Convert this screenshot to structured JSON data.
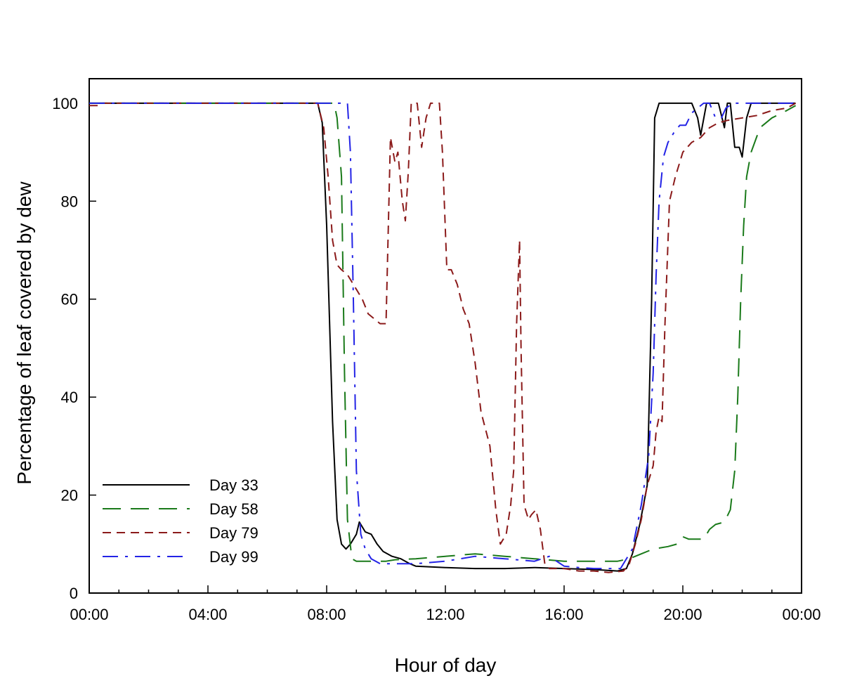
{
  "chart_data": {
    "type": "line",
    "title": "",
    "xlabel": "Hour of day",
    "ylabel": "Percentage of leaf covered by dew",
    "xlim": [
      0,
      24
    ],
    "ylim": [
      0,
      105
    ],
    "x_ticks": [
      0,
      4,
      8,
      12,
      16,
      20,
      24
    ],
    "x_tick_labels": [
      "00:00",
      "04:00",
      "08:00",
      "12:00",
      "16:00",
      "20:00",
      "00:00"
    ],
    "x_minor_step": 1,
    "y_ticks": [
      0,
      20,
      40,
      60,
      80,
      100
    ],
    "y_tick_labels": [
      "0",
      "20",
      "40",
      "60",
      "80",
      "100"
    ],
    "grid": false,
    "legend_position": "bottom-left",
    "series": [
      {
        "name": "Day 33",
        "color": "#000000",
        "dash": "solid",
        "points": [
          [
            0,
            100
          ],
          [
            7.7,
            100
          ],
          [
            7.85,
            96
          ],
          [
            8.0,
            75
          ],
          [
            8.2,
            35
          ],
          [
            8.35,
            15
          ],
          [
            8.5,
            10
          ],
          [
            8.65,
            9
          ],
          [
            8.8,
            10
          ],
          [
            9.0,
            12
          ],
          [
            9.1,
            14.5
          ],
          [
            9.3,
            12.5
          ],
          [
            9.5,
            12
          ],
          [
            9.7,
            10
          ],
          [
            9.9,
            8.5
          ],
          [
            10.2,
            7.5
          ],
          [
            10.5,
            7
          ],
          [
            10.8,
            6
          ],
          [
            11,
            5.5
          ],
          [
            12,
            5.2
          ],
          [
            13,
            5
          ],
          [
            14,
            5
          ],
          [
            15,
            5.2
          ],
          [
            16,
            5
          ],
          [
            17,
            4.8
          ],
          [
            17.8,
            4.5
          ],
          [
            18.1,
            5
          ],
          [
            18.3,
            8
          ],
          [
            18.55,
            14
          ],
          [
            18.8,
            22
          ],
          [
            18.95,
            60
          ],
          [
            19.05,
            97
          ],
          [
            19.2,
            100
          ],
          [
            20.3,
            100
          ],
          [
            20.5,
            97
          ],
          [
            20.6,
            93.5
          ],
          [
            20.8,
            100
          ],
          [
            21.2,
            100
          ],
          [
            21.4,
            95
          ],
          [
            21.5,
            100
          ],
          [
            21.6,
            100
          ],
          [
            21.75,
            91
          ],
          [
            21.9,
            91
          ],
          [
            22.0,
            89
          ],
          [
            22.15,
            97
          ],
          [
            22.3,
            100
          ],
          [
            23.8,
            100
          ]
        ]
      },
      {
        "name": "Day 58",
        "color": "#1a7a1a",
        "dash": "long",
        "points": [
          [
            0,
            100
          ],
          [
            8.25,
            100
          ],
          [
            8.35,
            97
          ],
          [
            8.5,
            85
          ],
          [
            8.6,
            45
          ],
          [
            8.7,
            15
          ],
          [
            8.85,
            7
          ],
          [
            9.0,
            6.5
          ],
          [
            9.5,
            6.5
          ],
          [
            10,
            6.5
          ],
          [
            10.3,
            6.8
          ],
          [
            11,
            7
          ],
          [
            12,
            7.5
          ],
          [
            13,
            8
          ],
          [
            14,
            7.5
          ],
          [
            15,
            7
          ],
          [
            16,
            6.5
          ],
          [
            17,
            6.5
          ],
          [
            17.8,
            6.5
          ],
          [
            18.2,
            7
          ],
          [
            18.6,
            8
          ],
          [
            19,
            9
          ],
          [
            19.5,
            9.5
          ],
          [
            19.8,
            10
          ],
          [
            20.0,
            11.5
          ],
          [
            20.2,
            11
          ],
          [
            20.5,
            11
          ],
          [
            20.7,
            11
          ],
          [
            20.9,
            13
          ],
          [
            21.1,
            14
          ],
          [
            21.4,
            14.5
          ],
          [
            21.6,
            17
          ],
          [
            21.75,
            25
          ],
          [
            21.85,
            40
          ],
          [
            21.95,
            60
          ],
          [
            22.05,
            75
          ],
          [
            22.15,
            85
          ],
          [
            22.3,
            90
          ],
          [
            22.6,
            95
          ],
          [
            23,
            97
          ],
          [
            23.5,
            98.5
          ],
          [
            23.8,
            99.5
          ]
        ]
      },
      {
        "name": "Day 79",
        "color": "#8b1a1a",
        "dash": "short",
        "points": [
          [
            0,
            99.5
          ],
          [
            0.3,
            99.5
          ],
          [
            0.45,
            100
          ],
          [
            7.7,
            100
          ],
          [
            7.9,
            95
          ],
          [
            8.05,
            85
          ],
          [
            8.2,
            72
          ],
          [
            8.35,
            67
          ],
          [
            8.5,
            66
          ],
          [
            8.7,
            65
          ],
          [
            9.0,
            62
          ],
          [
            9.2,
            60
          ],
          [
            9.4,
            57
          ],
          [
            9.6,
            56
          ],
          [
            9.8,
            55
          ],
          [
            10.0,
            55
          ],
          [
            10.15,
            93
          ],
          [
            10.3,
            88
          ],
          [
            10.4,
            90
          ],
          [
            10.55,
            80
          ],
          [
            10.65,
            76
          ],
          [
            10.75,
            86
          ],
          [
            10.85,
            100
          ],
          [
            11.05,
            100
          ],
          [
            11.2,
            91
          ],
          [
            11.35,
            97
          ],
          [
            11.5,
            100
          ],
          [
            11.8,
            100
          ],
          [
            11.9,
            90
          ],
          [
            12.05,
            66
          ],
          [
            12.2,
            66
          ],
          [
            12.4,
            63
          ],
          [
            12.6,
            58
          ],
          [
            12.8,
            55
          ],
          [
            13.0,
            47
          ],
          [
            13.2,
            37
          ],
          [
            13.5,
            30
          ],
          [
            13.7,
            17
          ],
          [
            13.85,
            10
          ],
          [
            14.05,
            12
          ],
          [
            14.2,
            18
          ],
          [
            14.3,
            25
          ],
          [
            14.4,
            55
          ],
          [
            14.5,
            72
          ],
          [
            14.55,
            50
          ],
          [
            14.65,
            18
          ],
          [
            14.8,
            15
          ],
          [
            14.9,
            16
          ],
          [
            15.05,
            17
          ],
          [
            15.2,
            13
          ],
          [
            15.35,
            6
          ],
          [
            15.5,
            5
          ],
          [
            16,
            5
          ],
          [
            16.5,
            4.5
          ],
          [
            17,
            4.5
          ],
          [
            17.5,
            4.2
          ],
          [
            18,
            4.5
          ],
          [
            18.2,
            6
          ],
          [
            18.4,
            10
          ],
          [
            18.6,
            15
          ],
          [
            18.8,
            22
          ],
          [
            19.0,
            26
          ],
          [
            19.1,
            33
          ],
          [
            19.2,
            36
          ],
          [
            19.3,
            35
          ],
          [
            19.4,
            55
          ],
          [
            19.55,
            80
          ],
          [
            19.75,
            85
          ],
          [
            20,
            90
          ],
          [
            20.3,
            92
          ],
          [
            20.6,
            93
          ],
          [
            20.9,
            95
          ],
          [
            21.2,
            96
          ],
          [
            21.5,
            96.5
          ],
          [
            22,
            97
          ],
          [
            22.5,
            97.5
          ],
          [
            23,
            98.5
          ],
          [
            23.5,
            99
          ],
          [
            23.8,
            100
          ]
        ]
      },
      {
        "name": "Day 99",
        "color": "#2323e6",
        "dash": "dashdot",
        "points": [
          [
            0,
            100
          ],
          [
            8.7,
            100
          ],
          [
            8.8,
            90
          ],
          [
            8.9,
            60
          ],
          [
            9.0,
            25
          ],
          [
            9.15,
            12
          ],
          [
            9.3,
            9
          ],
          [
            9.5,
            7
          ],
          [
            9.8,
            6
          ],
          [
            10,
            6
          ],
          [
            11,
            6
          ],
          [
            12,
            6.5
          ],
          [
            13,
            7.5
          ],
          [
            14,
            7
          ],
          [
            15,
            6.5
          ],
          [
            15.5,
            7.5
          ],
          [
            16,
            5.5
          ],
          [
            16.5,
            5.2
          ],
          [
            17,
            5
          ],
          [
            17.5,
            5
          ],
          [
            17.9,
            5
          ],
          [
            18.3,
            9
          ],
          [
            18.6,
            18
          ],
          [
            18.85,
            28
          ],
          [
            19.0,
            45
          ],
          [
            19.1,
            65
          ],
          [
            19.2,
            80
          ],
          [
            19.35,
            89
          ],
          [
            19.5,
            92
          ],
          [
            19.7,
            94
          ],
          [
            19.9,
            95.5
          ],
          [
            20.1,
            95.5
          ],
          [
            20.3,
            98
          ],
          [
            20.5,
            99
          ],
          [
            20.7,
            100
          ],
          [
            20.9,
            100
          ],
          [
            21.1,
            97
          ],
          [
            21.3,
            97
          ],
          [
            21.45,
            99
          ],
          [
            21.7,
            100
          ],
          [
            23.8,
            100
          ]
        ]
      }
    ]
  }
}
